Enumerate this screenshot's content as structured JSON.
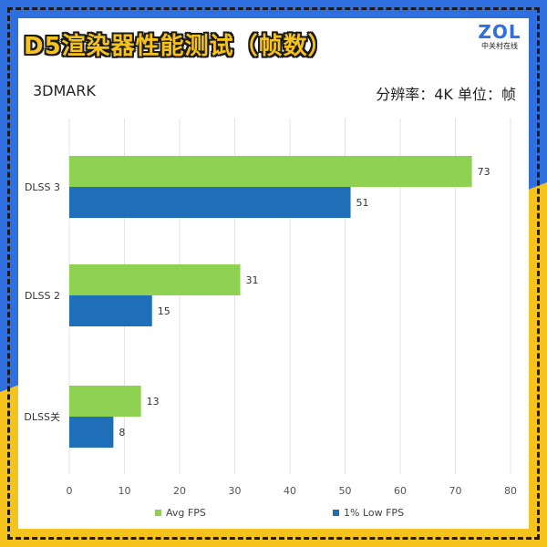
{
  "header": {
    "title": "D5渲染器性能测试（帧数）",
    "logo_mark": "ZOL",
    "logo_sub": "中关村在线",
    "subtitle_left": "3DMARK",
    "subtitle_right": "分辨率：4K   单位：帧"
  },
  "colors": {
    "avg": "#8fd150",
    "low": "#1f6eb8",
    "grid": "#e3e3e3",
    "frame_blue": "#2f6fe0",
    "frame_yellow": "#f6c21c"
  },
  "chart_data": {
    "type": "bar",
    "orientation": "horizontal",
    "categories": [
      "DLSS 3",
      "DLSS 2",
      "DLSS关"
    ],
    "series": [
      {
        "name": "Avg FPS",
        "values": [
          73,
          31,
          13
        ]
      },
      {
        "name": "1% Low FPS",
        "values": [
          51,
          15,
          8
        ]
      }
    ],
    "xlim": [
      0,
      80
    ],
    "xticks": [
      0,
      10,
      20,
      30,
      40,
      50,
      60,
      70,
      80
    ],
    "grid": true,
    "legend_position": "bottom"
  }
}
